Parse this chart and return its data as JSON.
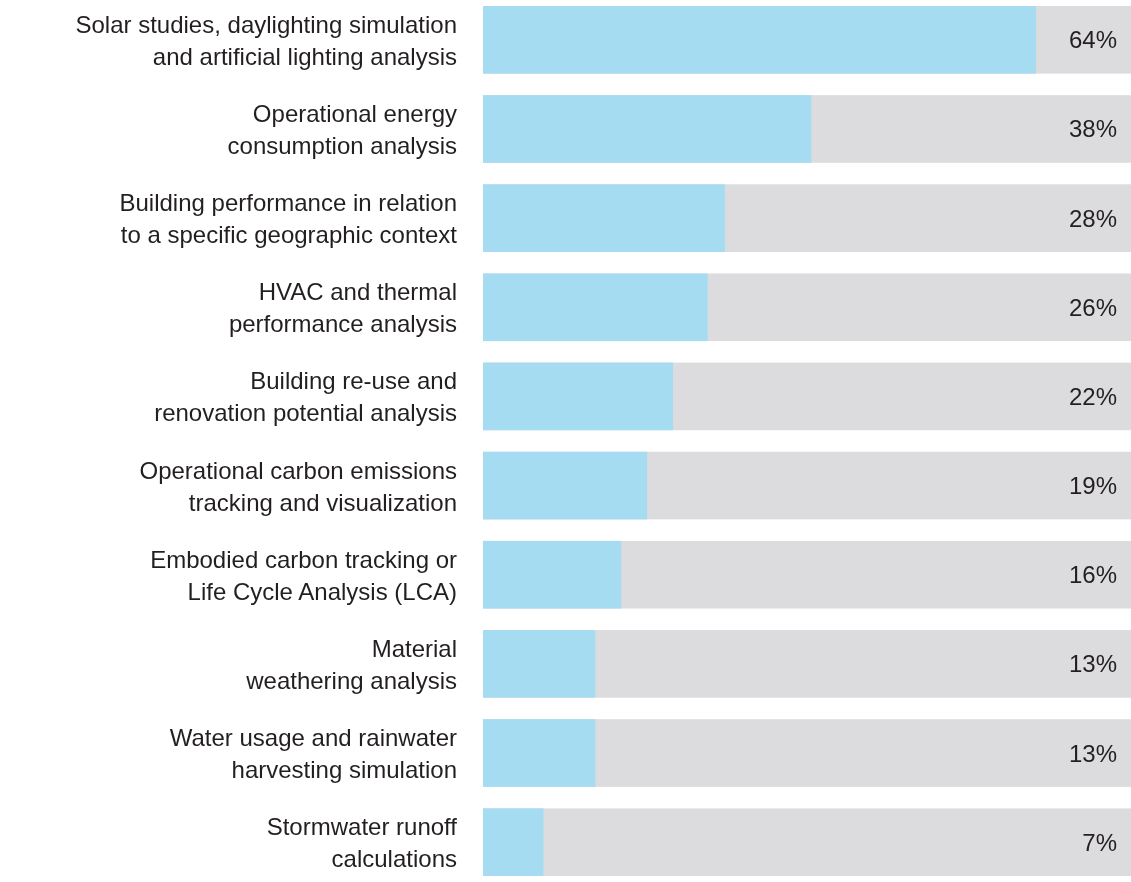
{
  "chart_data": {
    "type": "bar",
    "orientation": "horizontal",
    "categories": [
      "Solar studies, daylighting simulation and artificial lighting analysis",
      "Operational energy consumption analysis",
      "Building performance in relation to a specific geographic context",
      "HVAC and thermal performance analysis",
      "Building re-use and renovation potential analysis",
      "Operational carbon emissions tracking and visualization",
      "Embodied carbon tracking or Life Cycle Analysis (LCA)",
      "Material weathering analysis",
      "Water usage and rainwater harvesting simulation",
      "Stormwater runoff calculations"
    ],
    "values": [
      64,
      38,
      28,
      26,
      22,
      19,
      16,
      13,
      13,
      7
    ],
    "value_labels": [
      "64%",
      "38%",
      "28%",
      "26%",
      "22%",
      "19%",
      "16%",
      "13%",
      "13%",
      "7%"
    ],
    "color": "#a6dcf2",
    "xlim": [
      0,
      75
    ],
    "tick_labels": "y"
  }
}
